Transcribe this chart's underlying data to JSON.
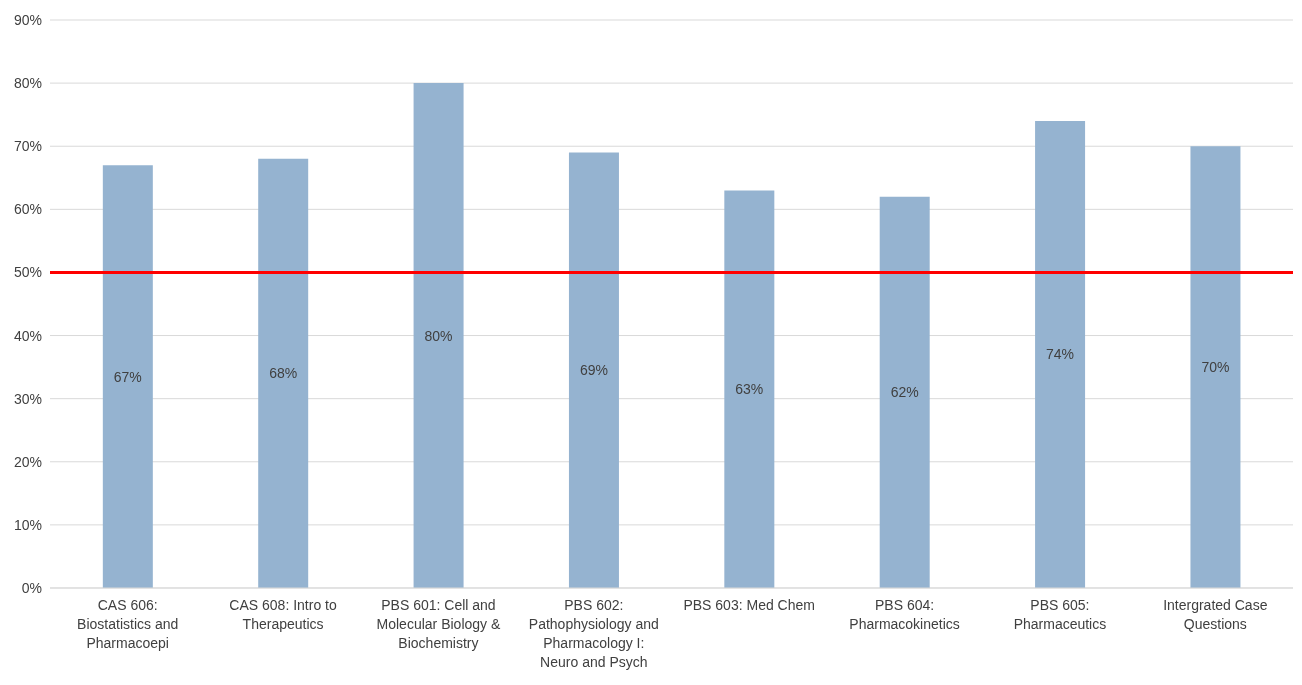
{
  "chart_data": {
    "type": "bar",
    "categories": [
      "CAS 606: Biostatistics and Pharmacoepi",
      "CAS 608: Intro to Therapeutics",
      "PBS 601: Cell and Molecular Biology & Biochemistry",
      "PBS 602: Pathophysiology and Pharmacology I: Neuro and Psych",
      "PBS 603: Med Chem",
      "PBS 604: Pharmacokinetics",
      "PBS 605: Pharmaceutics",
      "Intergrated Case Questions"
    ],
    "values": [
      67,
      68,
      80,
      69,
      63,
      62,
      74,
      70
    ],
    "value_labels": [
      "67%",
      "68%",
      "80%",
      "69%",
      "63%",
      "62%",
      "74%",
      "70%"
    ],
    "color": "#95b3d0",
    "ylim": [
      0,
      90
    ],
    "yticks": [
      {
        "value": 0,
        "label": "0%"
      },
      {
        "value": 10,
        "label": "10%"
      },
      {
        "value": 20,
        "label": "20%"
      },
      {
        "value": 30,
        "label": "30%"
      },
      {
        "value": 40,
        "label": "40%"
      },
      {
        "value": 50,
        "label": "50%"
      },
      {
        "value": 60,
        "label": "60%"
      },
      {
        "value": 70,
        "label": "70%"
      },
      {
        "value": 80,
        "label": "80%"
      },
      {
        "value": 90,
        "label": "90%"
      }
    ],
    "grid": "y",
    "ref_lines": [
      {
        "axis": "y",
        "value": 50,
        "color": "#ff0000"
      }
    ]
  }
}
